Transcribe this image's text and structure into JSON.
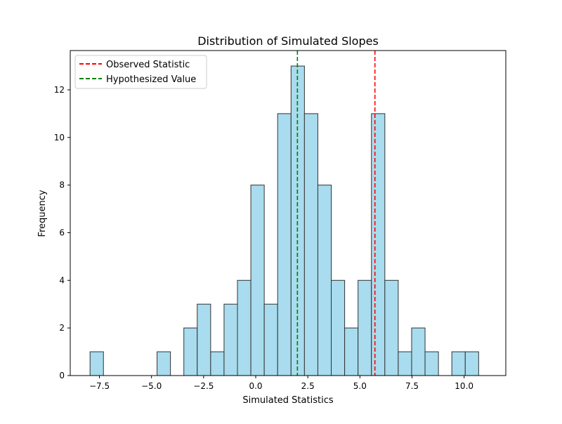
{
  "chart_data": {
    "type": "bar",
    "title": "Distribution of Simulated Slopes",
    "xlabel": "Simulated Statistics",
    "ylabel": "Frequency",
    "xlim": [
      -8.9,
      12.0
    ],
    "ylim": [
      0,
      13.65
    ],
    "x_ticks": [
      -7.5,
      -5.0,
      -2.5,
      0.0,
      2.5,
      5.0,
      7.5,
      10.0
    ],
    "x_tick_labels": [
      "−7.5",
      "−5.0",
      "−2.5",
      "0.0",
      "2.5",
      "5.0",
      "7.5",
      "10.0"
    ],
    "y_ticks": [
      0,
      2,
      4,
      6,
      8,
      10,
      12
    ],
    "y_tick_labels": [
      "0",
      "2",
      "4",
      "6",
      "8",
      "10",
      "12"
    ],
    "bin_start": -7.95,
    "bin_width": 0.643,
    "counts": [
      1,
      0,
      0,
      0,
      0,
      1,
      0,
      2,
      3,
      1,
      3,
      4,
      8,
      3,
      11,
      13,
      11,
      8,
      4,
      2,
      4,
      11,
      4,
      1,
      2,
      1,
      0,
      1,
      1
    ],
    "bar_color": "#a8dcee",
    "bar_edge_color": "#333333",
    "lines": [
      {
        "name": "Observed Statistic",
        "x": 5.72,
        "color": "#ff0000"
      },
      {
        "name": "Hypothesized Value",
        "x": 2.0,
        "color": "#008000"
      }
    ],
    "legend": {
      "position": "top-left",
      "entries": [
        "Observed Statistic",
        "Hypothesized Value"
      ]
    },
    "grid": false
  }
}
